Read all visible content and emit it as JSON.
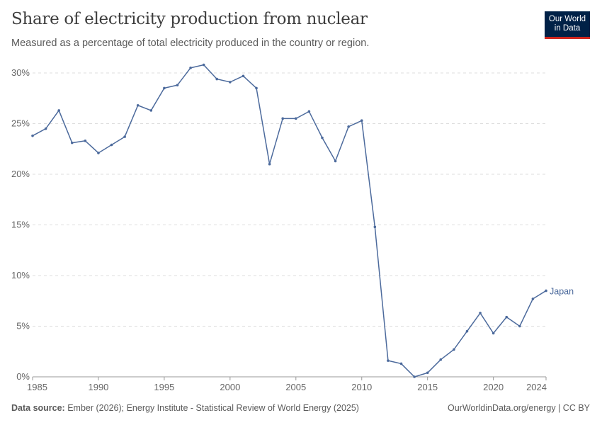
{
  "header": {
    "title": "Share of electricity production from nuclear",
    "subtitle": "Measured as a percentage of total electricity produced in the country or region.",
    "logo_line1": "Our World",
    "logo_line2": "in Data"
  },
  "footer": {
    "source_label": "Data source:",
    "source_text": "Ember (2026); Energy Institute - Statistical Review of World Energy (2025)",
    "credit": "OurWorldinData.org/energy | CC BY"
  },
  "chart_data": {
    "type": "line",
    "title": "Share of electricity production from nuclear",
    "xlim": [
      1985,
      2024
    ],
    "ylim": [
      0,
      30
    ],
    "x_ticks": [
      "1985",
      "1990",
      "1995",
      "2000",
      "2005",
      "2010",
      "2015",
      "2020",
      "2024"
    ],
    "y_ticks": [
      "0%",
      "5%",
      "10%",
      "15%",
      "20%",
      "25%",
      "30%"
    ],
    "grid": "horizontal dashed",
    "series": [
      {
        "name": "Japan",
        "color": "#4c6a9c",
        "x": [
          1985,
          1986,
          1987,
          1988,
          1989,
          1990,
          1991,
          1992,
          1993,
          1994,
          1995,
          1996,
          1997,
          1998,
          1999,
          2000,
          2001,
          2002,
          2003,
          2004,
          2005,
          2006,
          2007,
          2008,
          2009,
          2010,
          2011,
          2012,
          2013,
          2014,
          2015,
          2016,
          2017,
          2018,
          2019,
          2020,
          2021,
          2022,
          2023,
          2024
        ],
        "y": [
          23.8,
          24.5,
          26.3,
          23.1,
          23.3,
          22.1,
          22.9,
          23.7,
          26.8,
          26.3,
          28.5,
          28.8,
          30.5,
          30.8,
          29.4,
          29.1,
          29.7,
          28.5,
          21.0,
          25.5,
          25.5,
          26.2,
          23.6,
          21.3,
          24.7,
          25.3,
          14.8,
          1.6,
          1.3,
          0.0,
          0.4,
          1.7,
          2.7,
          4.5,
          6.3,
          4.3,
          5.9,
          5.0,
          7.7,
          8.5
        ]
      }
    ]
  }
}
